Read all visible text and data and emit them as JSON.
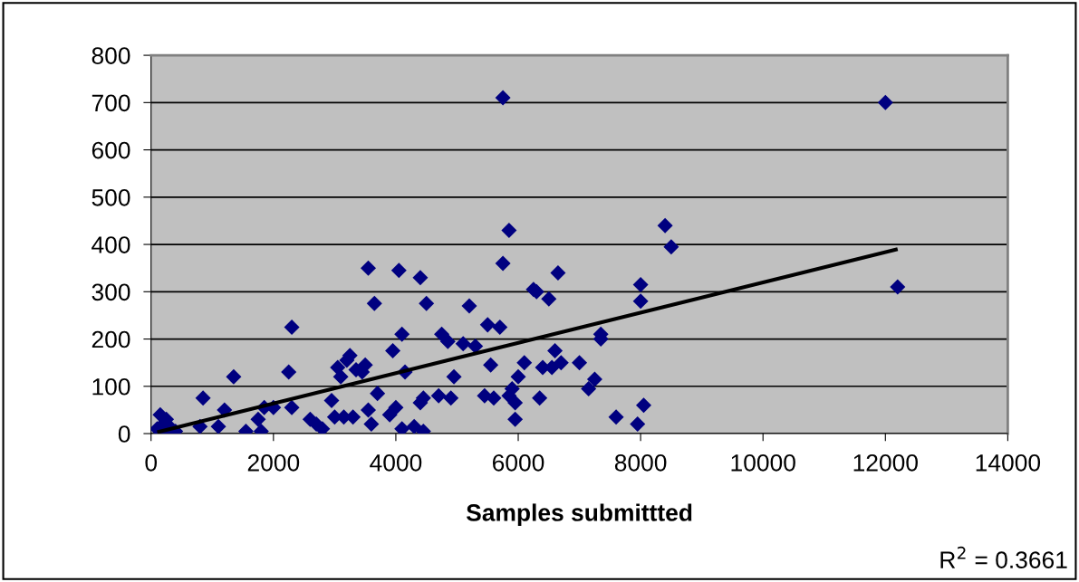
{
  "chart_data": {
    "type": "scatter",
    "xlabel": "Samples submittted",
    "annotations": [
      "R$^{2}$ = 0.3661"
    ],
    "xlim": [
      0,
      14000
    ],
    "xticks": [
      0,
      2000,
      4000,
      6000,
      8000,
      10000,
      12000,
      14000
    ],
    "ylim": [
      0,
      800
    ],
    "yticks": [
      0,
      100,
      200,
      300,
      400,
      500,
      600,
      700,
      800
    ],
    "grid": "y",
    "marker": "diamond",
    "legend": false,
    "series": [
      {
        "color": "#000080",
        "x": [
          100,
          150,
          200,
          250,
          300,
          400,
          200,
          850,
          800,
          1100,
          1200,
          1350,
          1550,
          1750,
          1800,
          1850,
          2000,
          2250,
          2300,
          2300,
          2600,
          2700,
          2800,
          2950,
          3000,
          3050,
          3100,
          3150,
          3200,
          3250,
          3300,
          3350,
          3450,
          3500,
          3550,
          3550,
          3600,
          3650,
          3700,
          3900,
          3950,
          4000,
          4050,
          4100,
          4100,
          4150,
          4300,
          4400,
          4400,
          4450,
          4450,
          4500,
          4700,
          4750,
          4850,
          4900,
          4950,
          5100,
          5200,
          5300,
          5450,
          5500,
          5550,
          5600,
          5700,
          5750,
          5750,
          5850,
          5850,
          5900,
          5950,
          5950,
          6000,
          6100,
          6250,
          6300,
          6350,
          6400,
          6500,
          6550,
          6600,
          6650,
          6700,
          7000,
          7150,
          7250,
          7350,
          7350,
          7600,
          7950,
          8000,
          8000,
          8050,
          8400,
          8500,
          12000,
          12200
        ],
        "values": [
          10,
          40,
          20,
          30,
          15,
          5,
          5,
          75,
          15,
          15,
          50,
          120,
          5,
          30,
          5,
          55,
          55,
          130,
          225,
          55,
          30,
          20,
          10,
          70,
          35,
          140,
          120,
          35,
          155,
          165,
          35,
          135,
          130,
          145,
          350,
          50,
          20,
          275,
          85,
          40,
          175,
          55,
          345,
          10,
          210,
          130,
          15,
          330,
          65,
          75,
          5,
          275,
          80,
          210,
          195,
          75,
          120,
          190,
          270,
          185,
          80,
          230,
          145,
          75,
          225,
          710,
          360,
          430,
          80,
          95,
          65,
          30,
          120,
          150,
          305,
          300,
          75,
          140,
          285,
          140,
          175,
          340,
          150,
          150,
          95,
          115,
          210,
          200,
          35,
          20,
          315,
          280,
          60,
          440,
          395,
          700,
          310
        ]
      },
      {
        "type": "line",
        "color": "#000000",
        "marker": "none",
        "x": [
          100,
          12200
        ],
        "values": [
          3,
          390
        ]
      }
    ]
  }
}
